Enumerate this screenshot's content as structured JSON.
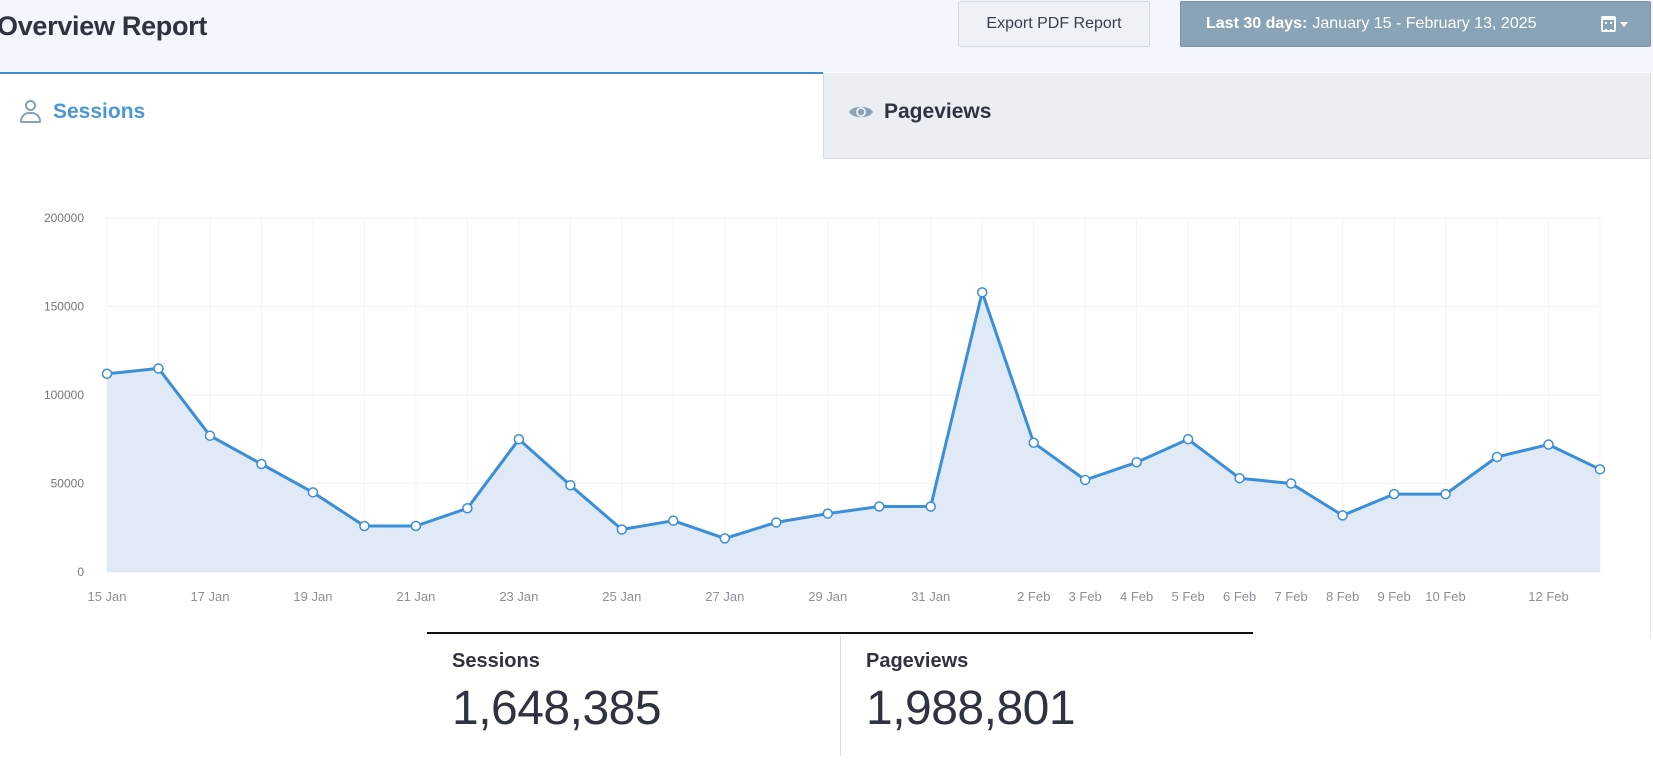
{
  "header": {
    "title": "Overview Report",
    "export_label": "Export PDF Report",
    "date_range_prefix": "Last 30 days:",
    "date_range_value": "January 15 - February 13, 2025",
    "calendar_icon": "calendar-icon"
  },
  "tabs": [
    {
      "label": "Sessions",
      "icon": "user-icon",
      "active": true
    },
    {
      "label": "Pageviews",
      "icon": "eye-icon",
      "active": false
    }
  ],
  "colors": {
    "line": "#3b8ed8",
    "area": "#dfeaf6",
    "accent": "#4b97d6",
    "date_button": "#8aa4b7"
  },
  "chart_data": {
    "type": "area",
    "xlabel": "",
    "ylabel": "",
    "grid": true,
    "ylim": [
      0,
      200000
    ],
    "yticks": [
      0,
      50000,
      100000,
      150000,
      200000
    ],
    "x": [
      "15 Jan",
      "16 Jan",
      "17 Jan",
      "18 Jan",
      "19 Jan",
      "20 Jan",
      "21 Jan",
      "22 Jan",
      "23 Jan",
      "24 Jan",
      "25 Jan",
      "26 Jan",
      "27 Jan",
      "28 Jan",
      "29 Jan",
      "30 Jan",
      "31 Jan",
      "1 Feb",
      "2 Feb",
      "3 Feb",
      "4 Feb",
      "5 Feb",
      "6 Feb",
      "7 Feb",
      "8 Feb",
      "9 Feb",
      "10 Feb",
      "11 Feb",
      "12 Feb",
      "13 Feb"
    ],
    "xtick_labels": [
      "15 Jan",
      "",
      "17 Jan",
      "",
      "19 Jan",
      "",
      "21 Jan",
      "",
      "23 Jan",
      "",
      "25 Jan",
      "",
      "27 Jan",
      "",
      "29 Jan",
      "",
      "31 Jan",
      "",
      "2 Feb",
      "3 Feb",
      "4 Feb",
      "5 Feb",
      "6 Feb",
      "7 Feb",
      "8 Feb",
      "9 Feb",
      "10 Feb",
      "",
      "12 Feb",
      ""
    ],
    "series": [
      {
        "name": "Sessions",
        "values": [
          112000,
          115000,
          77000,
          61000,
          45000,
          26000,
          26000,
          36000,
          75000,
          49000,
          24000,
          29000,
          19000,
          28000,
          33000,
          37000,
          37000,
          158000,
          73000,
          52000,
          62000,
          75000,
          53000,
          50000,
          32000,
          44000,
          44000,
          65000,
          72000,
          58000
        ]
      }
    ]
  },
  "totals": [
    {
      "label": "Sessions",
      "value": "1,648,385"
    },
    {
      "label": "Pageviews",
      "value": "1,988,801"
    }
  ]
}
